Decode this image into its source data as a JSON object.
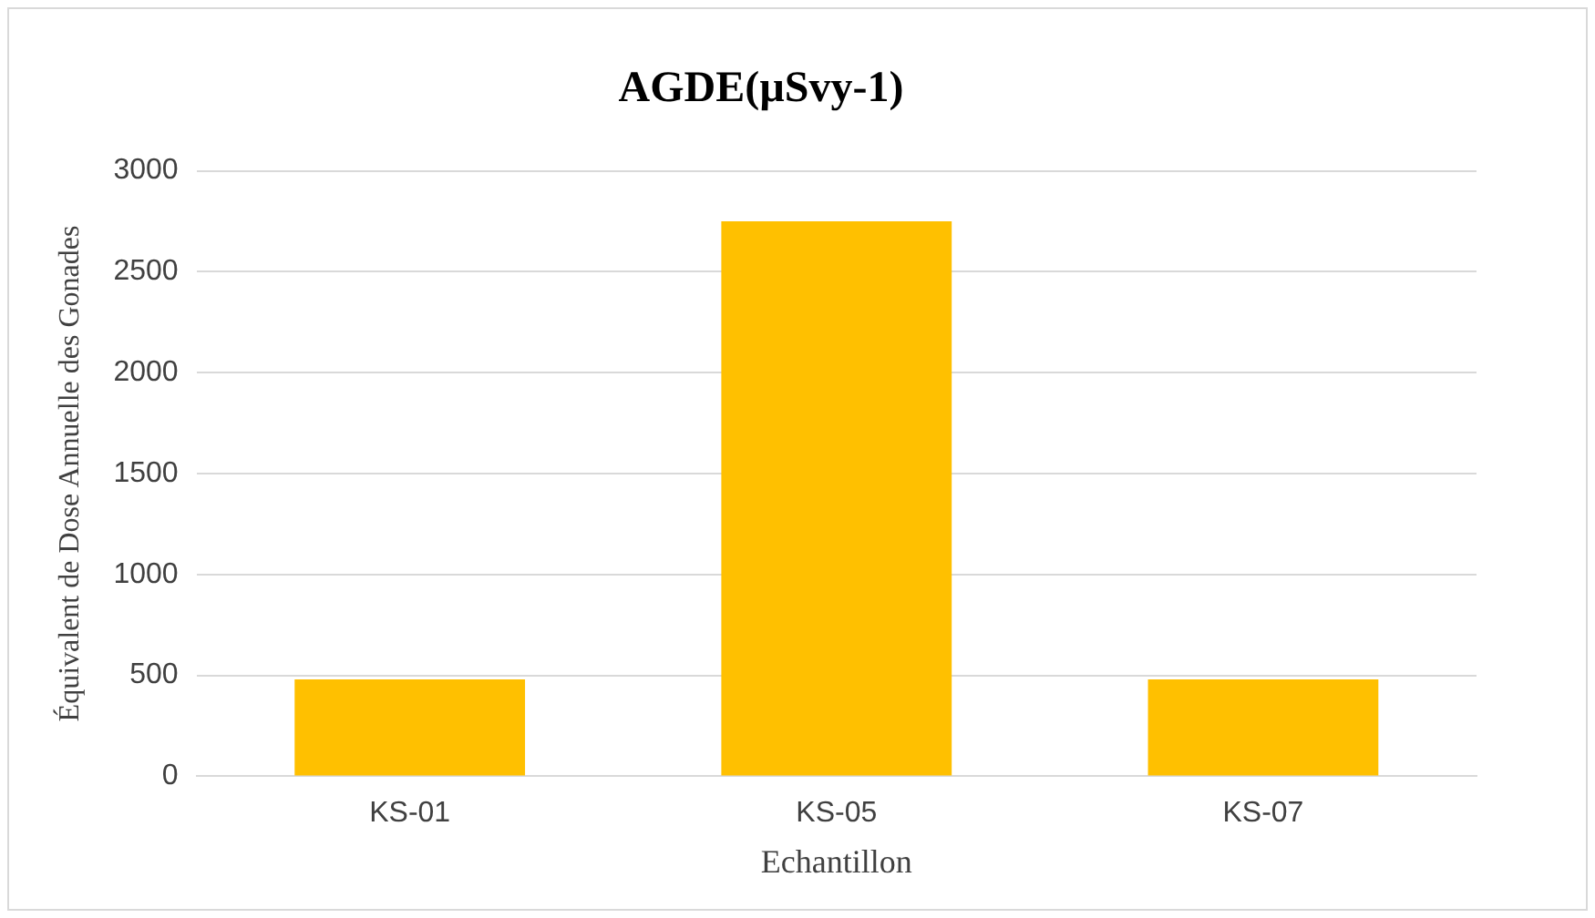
{
  "chart_data": {
    "type": "bar",
    "title": "AGDE(µSvy-1)",
    "xlabel": "Echantillon",
    "ylabel": "Équivalent de Dose Annuelle des Gonades",
    "categories": [
      "KS-01",
      "KS-05",
      "KS-07"
    ],
    "values": [
      480,
      2750,
      480
    ],
    "color": "#ffc000",
    "ylim": [
      0,
      3000
    ],
    "yticks": [
      0,
      500,
      1000,
      1500,
      2000,
      2500,
      3000
    ],
    "grid": "y",
    "legend": false
  }
}
